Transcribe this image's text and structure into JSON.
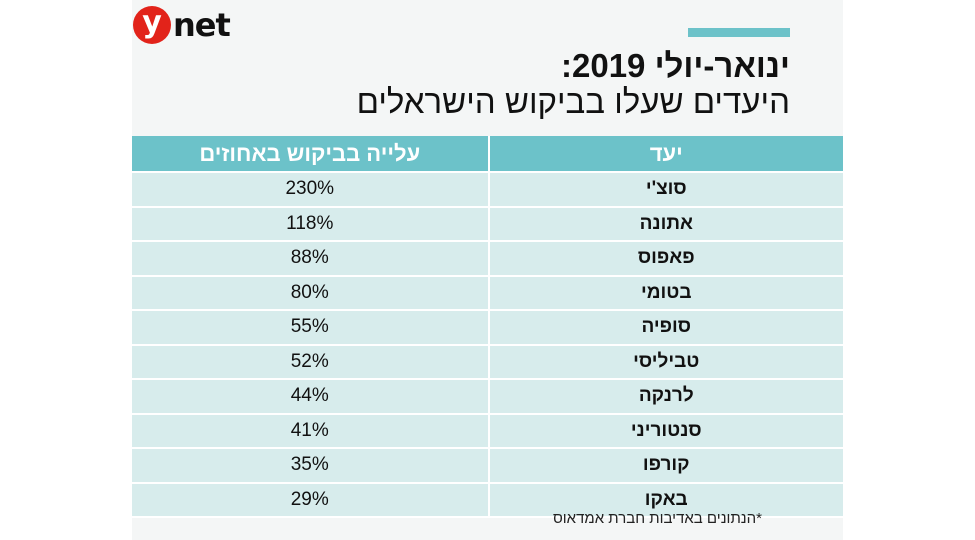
{
  "brand": {
    "logo_letter": "y",
    "logo_text": "net",
    "logo_color": "#e2231a"
  },
  "accent_color": "#6cc2c9",
  "chart_data": {
    "type": "table",
    "title": "ינואר-יולי 2019:",
    "subtitle": "היעדים שעלו בביקוש הישראלים",
    "columns": [
      "יעד",
      "עלייה בביקוש באחוזים"
    ],
    "rows": [
      {
        "destination": "סוצ'י",
        "increase": "230%"
      },
      {
        "destination": "אתונה",
        "increase": "118%"
      },
      {
        "destination": "פאפוס",
        "increase": "88%"
      },
      {
        "destination": "בטומי",
        "increase": "80%"
      },
      {
        "destination": "סופיה",
        "increase": "55%"
      },
      {
        "destination": "טביליסי",
        "increase": "52%"
      },
      {
        "destination": "לרנקה",
        "increase": "44%"
      },
      {
        "destination": "סנטוריני",
        "increase": "41%"
      },
      {
        "destination": "קורפו",
        "increase": "35%"
      },
      {
        "destination": "באקו",
        "increase": "29%"
      }
    ],
    "values": [
      230,
      118,
      88,
      80,
      55,
      52,
      44,
      41,
      35,
      29
    ],
    "footnote": "*הנתונים באדיבות חברת אמדאוס"
  }
}
